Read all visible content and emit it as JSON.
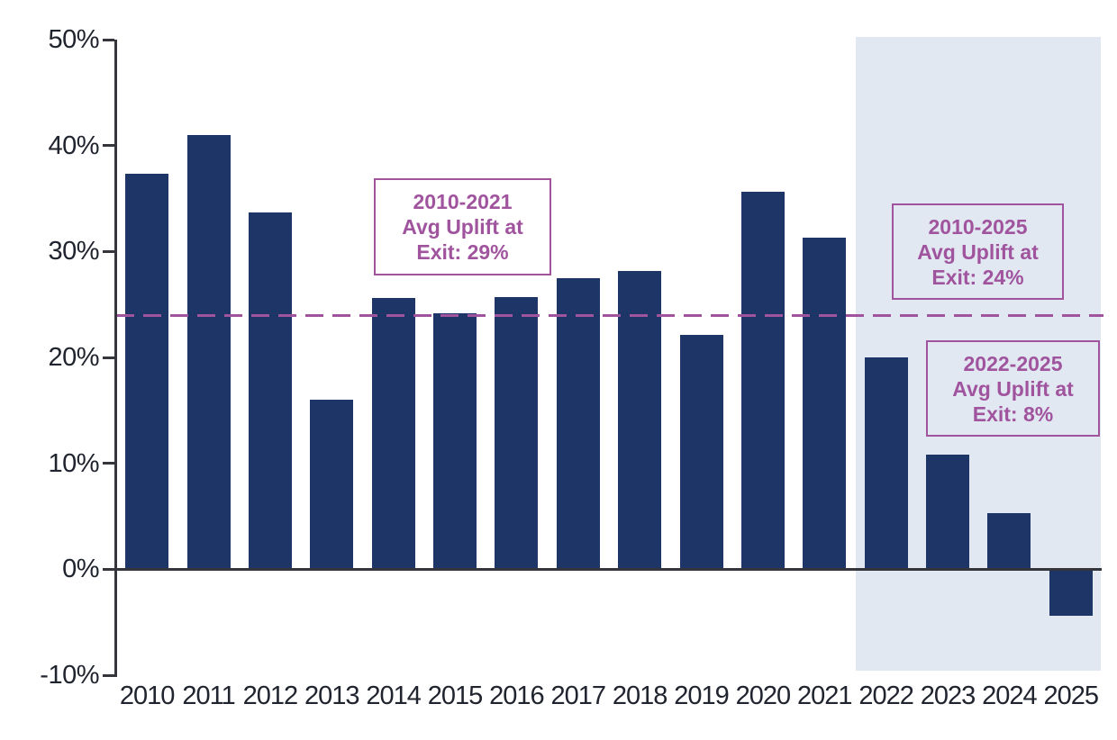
{
  "chart_data": {
    "type": "bar",
    "title": "",
    "xlabel": "",
    "ylabel": "",
    "categories": [
      "2010",
      "2011",
      "2012",
      "2013",
      "2014",
      "2015",
      "2016",
      "2017",
      "2018",
      "2019",
      "2020",
      "2021",
      "2022",
      "2023",
      "2024",
      "2025"
    ],
    "values": [
      37.3,
      41.0,
      33.7,
      16.0,
      25.6,
      24.2,
      25.7,
      27.5,
      28.2,
      22.1,
      35.6,
      31.3,
      20.0,
      10.8,
      5.3,
      -4.4
    ],
    "ylim": [
      -10,
      50
    ],
    "ytick_values": [
      50,
      40,
      30,
      20,
      10,
      0,
      -10
    ],
    "ytick_labels": [
      "50%",
      "40%",
      "30%",
      "20%",
      "10%",
      "0%",
      "-10%"
    ],
    "grid": false,
    "legend": "none",
    "avg_line": {
      "value": 24,
      "style": "dashed"
    },
    "highlight_region": {
      "categories": [
        "2022",
        "2023",
        "2024",
        "2025"
      ]
    },
    "annotations": [
      {
        "lines": [
          "2010-2021",
          "Avg Uplift at",
          "Exit: 29%"
        ]
      },
      {
        "lines": [
          "2010-2025",
          "Avg Uplift at",
          "Exit: 24%"
        ]
      },
      {
        "lines": [
          "2022-2025",
          "Avg Uplift at",
          "Exit: 8%"
        ]
      }
    ],
    "colors": {
      "bar": "#1d3567",
      "annotation_purple": "#a0549e",
      "dashed_line": "#a0549e",
      "highlight_region": "#e2e8f2",
      "axis": "#34363c",
      "tick_text": "#20242e",
      "background": "#ffffff"
    }
  }
}
